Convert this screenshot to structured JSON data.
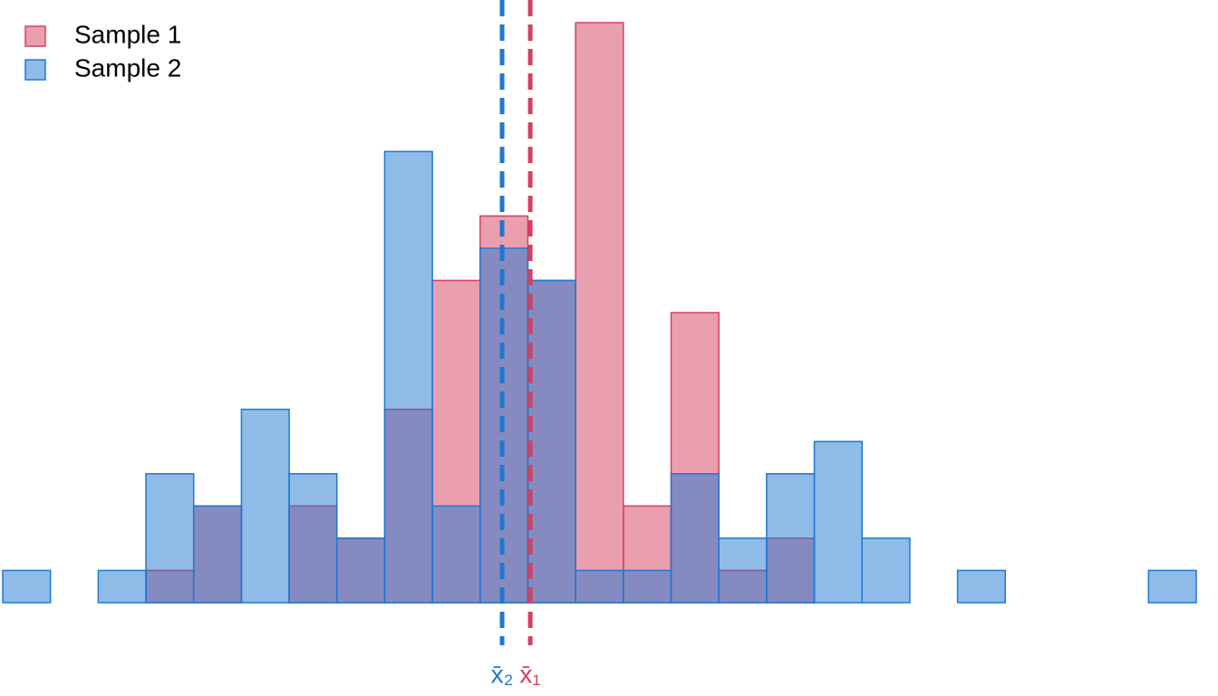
{
  "chart_data": {
    "type": "histogram",
    "bins": [
      0,
      1,
      2,
      3,
      4,
      5,
      6,
      7,
      8,
      9,
      10,
      11,
      12,
      13,
      14,
      15,
      16,
      17,
      18,
      19,
      20,
      21,
      22,
      23,
      24,
      25
    ],
    "xlim": [
      0,
      25
    ],
    "ylim": [
      0,
      18
    ],
    "legend": "top-left",
    "series": [
      {
        "name": "Sample 1",
        "color": "#d6405f",
        "mean": 11.05,
        "mean_label": "x̄₁",
        "values": [
          0,
          0,
          0,
          1,
          3,
          0,
          3,
          2,
          6,
          10,
          12,
          10,
          18,
          3,
          9,
          1,
          2,
          0,
          0,
          0,
          0,
          0,
          0,
          0,
          0
        ]
      },
      {
        "name": "Sample 2",
        "color": "#1f78d1",
        "mean": 10.46,
        "mean_label": "x̄₂",
        "values": [
          1,
          0,
          1,
          4,
          3,
          6,
          4,
          2,
          14,
          3,
          11,
          10,
          1,
          1,
          4,
          2,
          4,
          5,
          2,
          0,
          1,
          0,
          0,
          0,
          1
        ]
      }
    ]
  }
}
